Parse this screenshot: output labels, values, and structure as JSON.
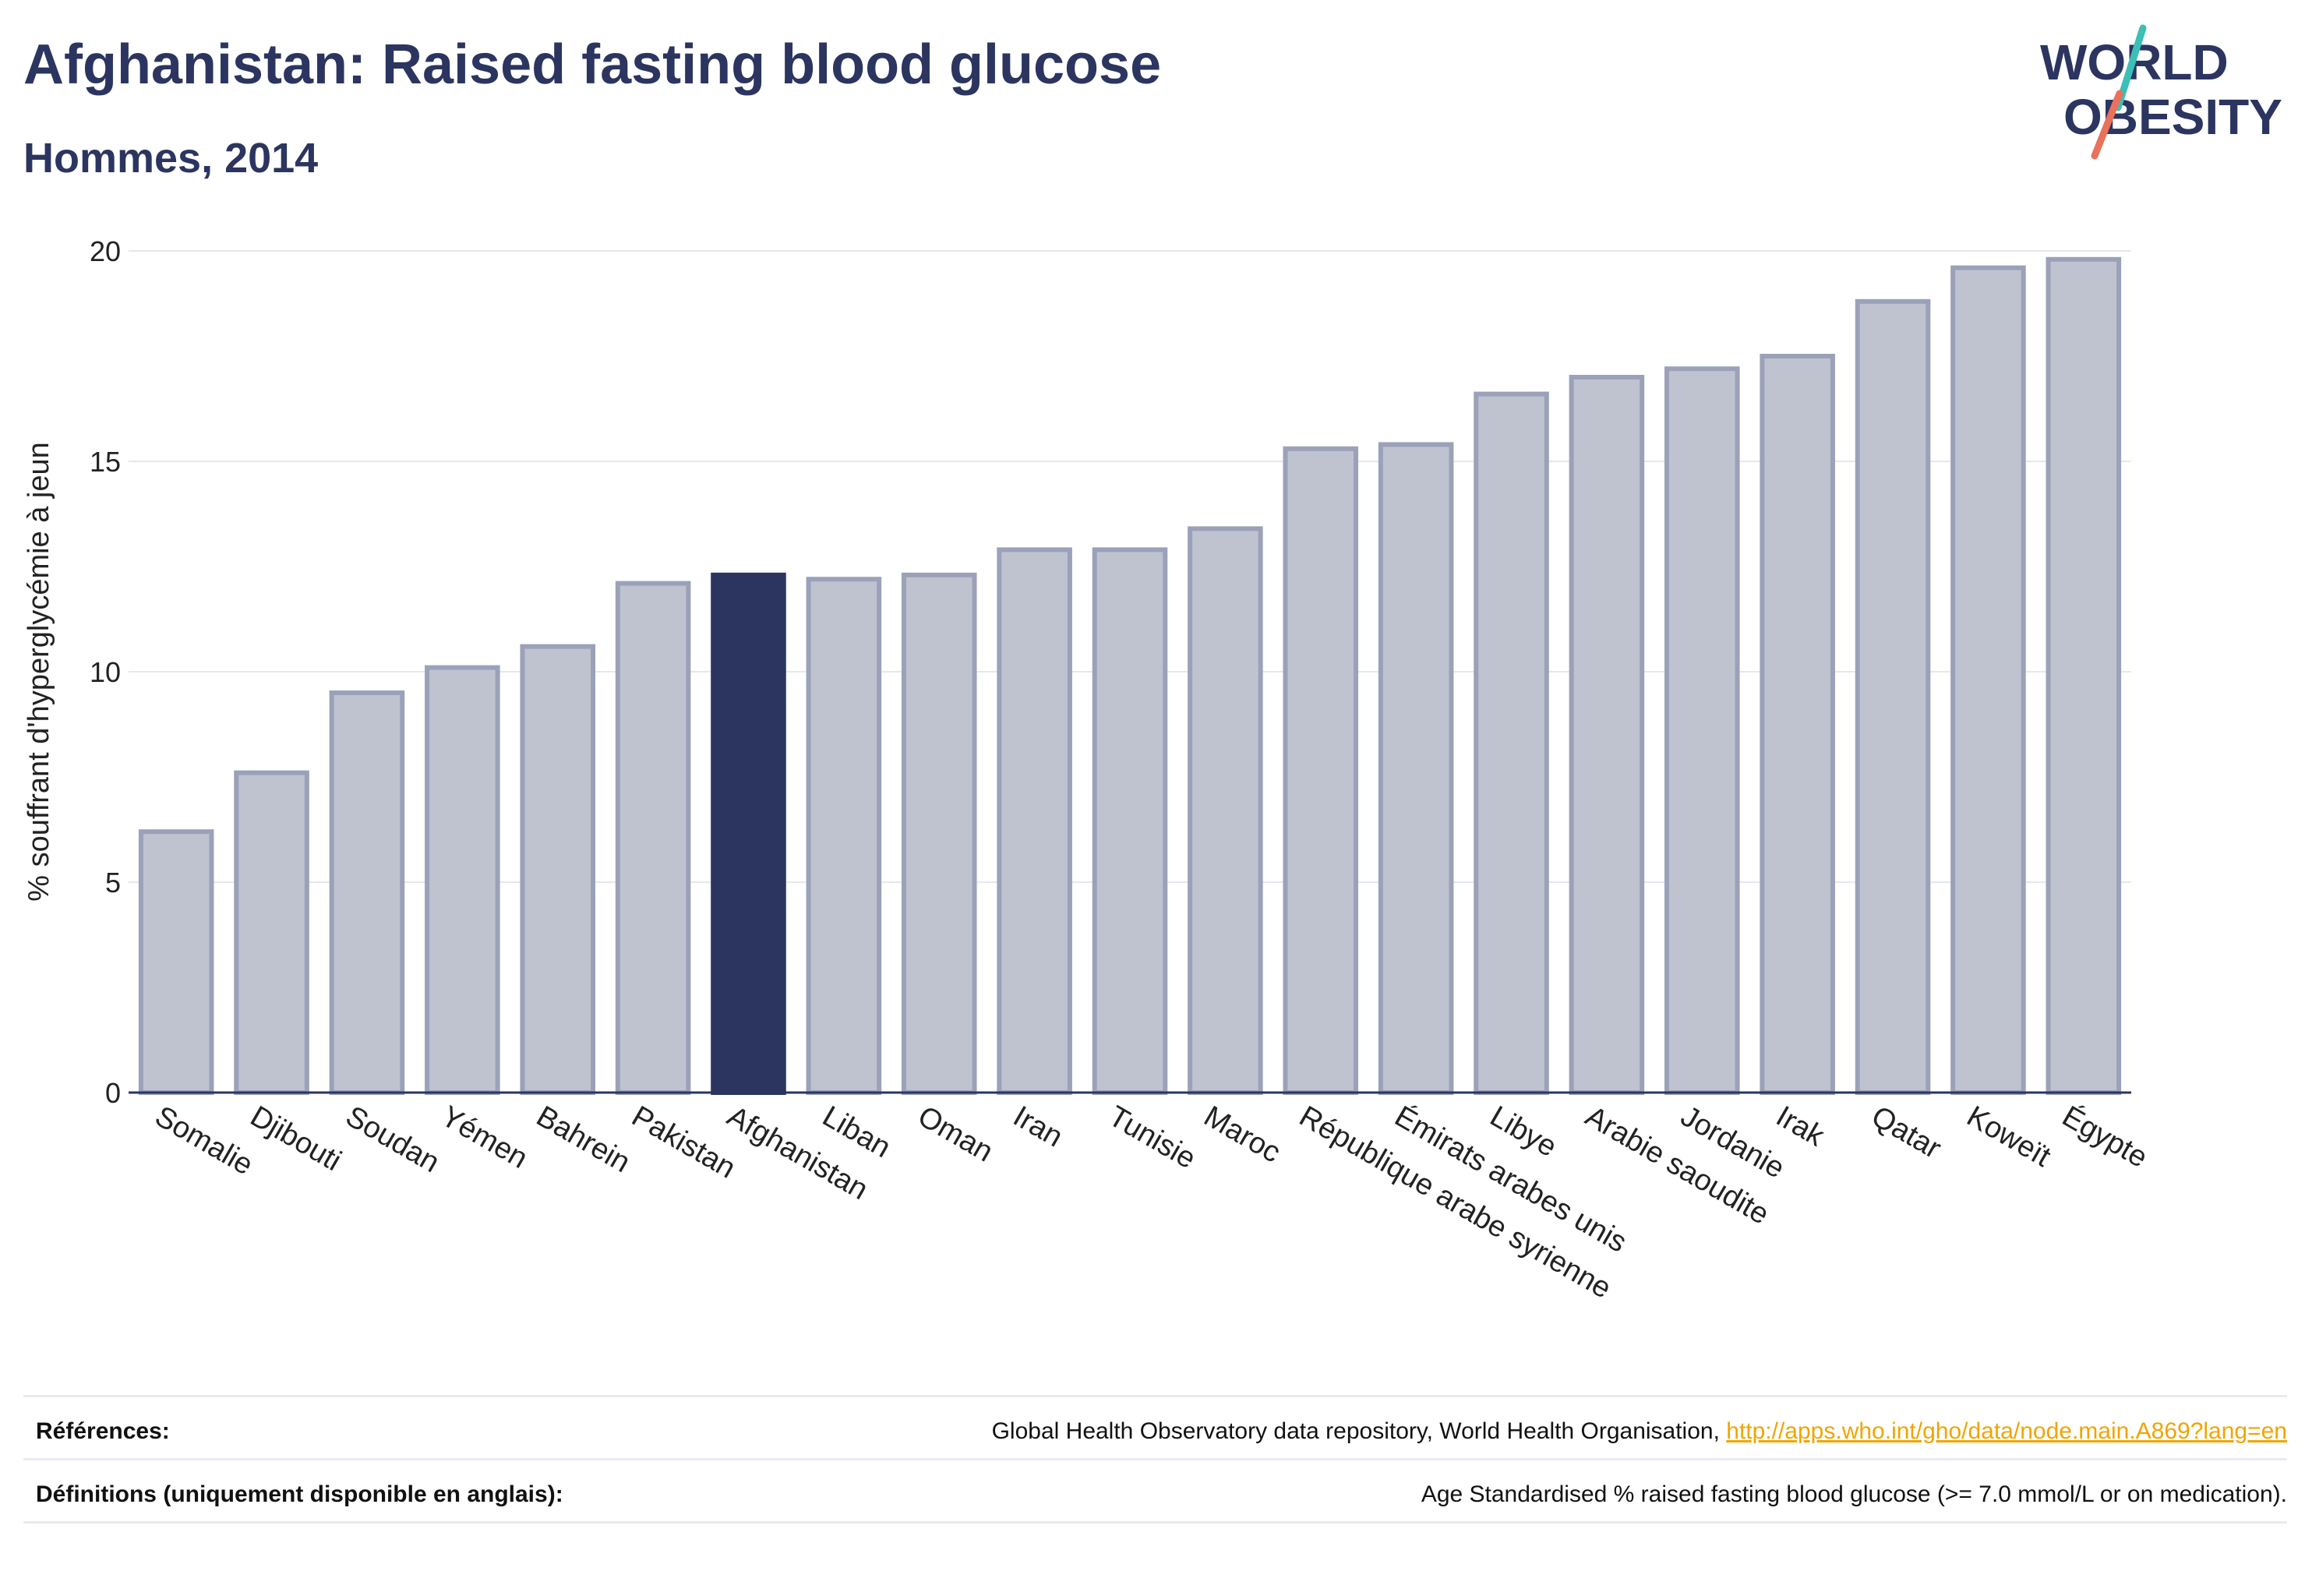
{
  "header": {
    "title": "Afghanistan: Raised fasting blood glucose",
    "subtitle": "Hommes, 2014"
  },
  "logo": {
    "line1": "WORLD",
    "line2": "OBESITY",
    "accent_teal": "#3bbfb7",
    "accent_coral": "#e8725c"
  },
  "colors": {
    "bar": "#bfc3d0",
    "bar_edge": "#9ba1b8",
    "highlight": "#2b3560",
    "text": "#2b3560",
    "link": "#f0a500"
  },
  "chart_data": {
    "type": "bar",
    "title": "Afghanistan: Raised fasting blood glucose",
    "subtitle": "Hommes, 2014",
    "xlabel": "",
    "ylabel": "% souffrant d'hyperglycémie à jeun",
    "ylim": [
      0,
      20
    ],
    "yticks": [
      0,
      5,
      10,
      15,
      20
    ],
    "grid": true,
    "highlight": "Afghanistan",
    "categories": [
      "Somalie",
      "Djibouti",
      "Soudan",
      "Yémen",
      "Bahrein",
      "Pakistan",
      "Afghanistan",
      "Liban",
      "Oman",
      "Iran",
      "Tunisie",
      "Maroc",
      "République arabe syrienne",
      "Émirats arabes unis",
      "Libye",
      "Arabie saoudite",
      "Jordanie",
      "Irak",
      "Qatar",
      "Koweït",
      "Égypte"
    ],
    "values": [
      6.2,
      7.6,
      9.5,
      10.1,
      10.6,
      12.1,
      12.3,
      12.2,
      12.3,
      12.9,
      12.9,
      13.4,
      15.3,
      15.4,
      16.6,
      17.0,
      17.2,
      17.5,
      18.8,
      19.6,
      19.8
    ]
  },
  "footer": {
    "references_label": "Références:",
    "references_text": "Global Health Observatory data repository, World Health Organisation, ",
    "references_link": "http://apps.who.int/gho/data/node.main.A869?lang=en",
    "definitions_label": "Définitions (uniquement disponible en anglais):",
    "definitions_text": "Age Standardised % raised fasting blood glucose (>= 7.0 mmol/L or on medication)."
  }
}
